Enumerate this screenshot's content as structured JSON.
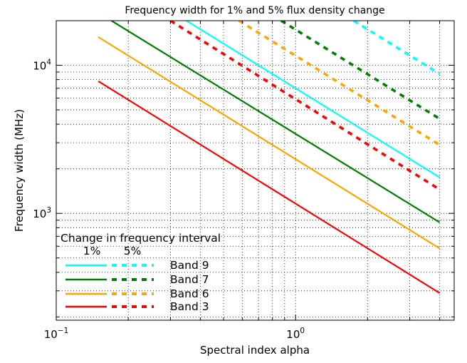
{
  "chart_data": {
    "type": "line",
    "title": "Frequency width for 1% and 5% flux density change",
    "xlabel": "Spectral index alpha",
    "ylabel": "Frequency width (MHz)",
    "xscale": "log",
    "yscale": "log",
    "xlim": [
      0.1,
      4.6
    ],
    "ylim": [
      190,
      20000
    ],
    "grid": true,
    "x_ticks": [
      {
        "value": 0.1,
        "base": "10",
        "exp": "−1"
      },
      {
        "value": 1,
        "base": "10",
        "exp": "0"
      }
    ],
    "y_ticks": [
      {
        "value": 1000,
        "base": "10",
        "exp": "3"
      },
      {
        "value": 10000,
        "base": "10",
        "exp": "4"
      }
    ],
    "legend": {
      "title": "Change in frequency interval",
      "col1": "1%",
      "col2": "5%",
      "position": "lower-left"
    },
    "series": [
      {
        "name": "Band 9",
        "color": "#00ffff",
        "style": "solid",
        "pct": "1%",
        "x": [
          0.35,
          4.0
        ],
        "y": [
          20000,
          1750
        ]
      },
      {
        "name": "Band 9",
        "color": "#00ffff",
        "style": "dashed",
        "pct": "5%",
        "x": [
          1.75,
          4.0
        ],
        "y": [
          20000,
          8750
        ]
      },
      {
        "name": "Band 7",
        "color": "#008000",
        "style": "solid",
        "pct": "1%",
        "x": [
          0.17,
          4.0
        ],
        "y": [
          20000,
          870
        ]
      },
      {
        "name": "Band 7",
        "color": "#008000",
        "style": "dashed",
        "pct": "5%",
        "x": [
          0.87,
          4.0
        ],
        "y": [
          20000,
          4350
        ]
      },
      {
        "name": "Band 6",
        "color": "#ffa500",
        "style": "solid",
        "pct": "1%",
        "x": [
          0.15,
          4.0
        ],
        "y": [
          15500,
          580
        ]
      },
      {
        "name": "Band 6",
        "color": "#ffa500",
        "style": "dashed",
        "pct": "5%",
        "x": [
          0.58,
          4.0
        ],
        "y": [
          20000,
          2900
        ]
      },
      {
        "name": "Band 3",
        "color": "#ff0000",
        "style": "solid",
        "pct": "1%",
        "x": [
          0.15,
          4.0
        ],
        "y": [
          7800,
          290
        ]
      },
      {
        "name": "Band 3",
        "color": "#ff0000",
        "style": "dashed",
        "pct": "5%",
        "x": [
          0.3,
          4.0
        ],
        "y": [
          20000,
          1450
        ]
      }
    ],
    "legend_entries": [
      {
        "label": "Band 9",
        "color": "#00ffff"
      },
      {
        "label": "Band 7",
        "color": "#008000"
      },
      {
        "label": "Band 6",
        "color": "#ffa500"
      },
      {
        "label": "Band 3",
        "color": "#ff0000"
      }
    ]
  }
}
